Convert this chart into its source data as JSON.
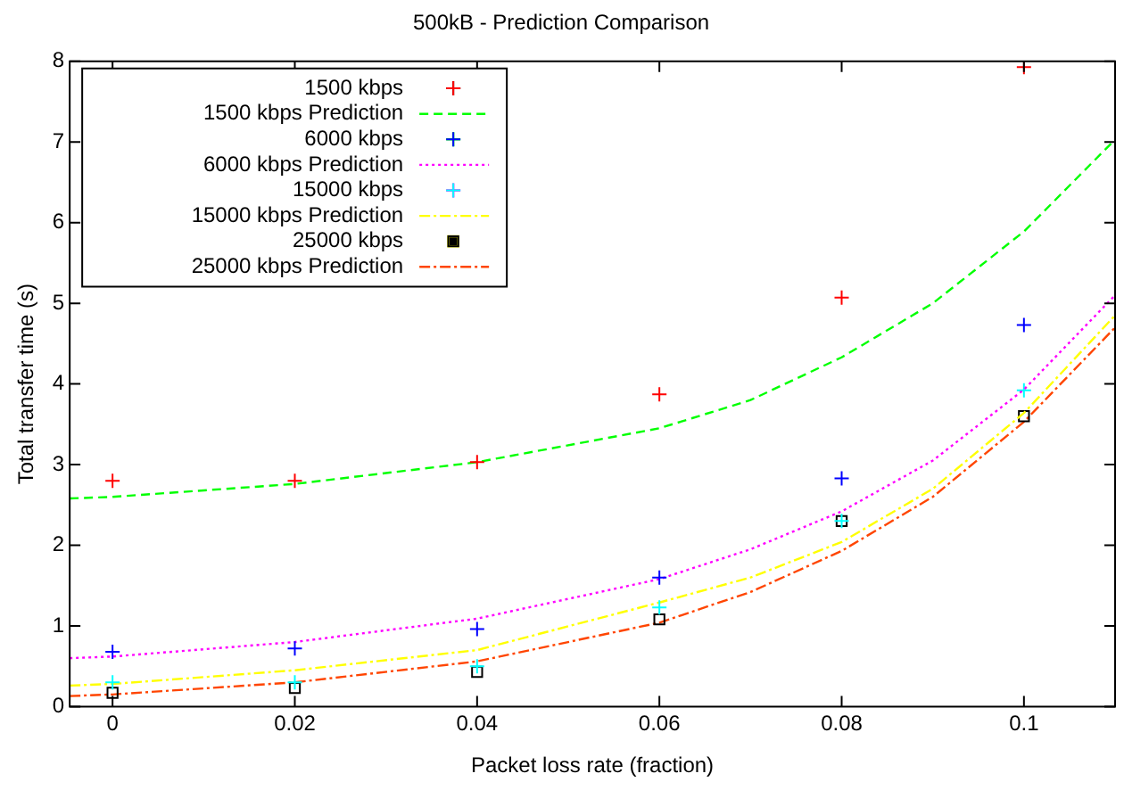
{
  "chart_data": {
    "type": "scatter",
    "title": "500kB - Prediction Comparison",
    "xlabel": "Packet loss rate (fraction)",
    "ylabel": "Total transfer time (s)",
    "xlim": [
      -0.0047,
      0.11
    ],
    "xticks": [
      0,
      0.02,
      0.04,
      0.06,
      0.08,
      0.1
    ],
    "ylim": [
      0,
      8
    ],
    "yticks": [
      0,
      1,
      2,
      3,
      4,
      5,
      6,
      7,
      8
    ],
    "grid": false,
    "legend": "top left",
    "x": [
      0,
      0.02,
      0.04,
      0.06,
      0.08,
      0.1
    ],
    "series": [
      {
        "name": "1500 kbps",
        "marker": "cross",
        "color": "#ff0000",
        "values": [
          2.8,
          2.8,
          3.03,
          3.87,
          5.07,
          7.93
        ]
      },
      {
        "name": "1500 kbps Prediction",
        "type": "line",
        "line_style": "dashed",
        "color": "#00ff00",
        "x": [
          -0.0047,
          0,
          0.02,
          0.04,
          0.06,
          0.07,
          0.08,
          0.09,
          0.1,
          0.11
        ],
        "values": [
          2.58,
          2.6,
          2.76,
          3.03,
          3.45,
          3.8,
          4.33,
          5.0,
          5.89,
          7.03
        ]
      },
      {
        "name": "6000 kbps",
        "marker": "cross",
        "color": "#0000ff",
        "values": [
          0.68,
          0.72,
          0.96,
          1.6,
          2.83,
          4.73
        ]
      },
      {
        "name": "6000 kbps Prediction",
        "type": "line",
        "line_style": "dotted",
        "color": "#ff00ff",
        "x": [
          -0.0047,
          0,
          0.02,
          0.04,
          0.06,
          0.07,
          0.08,
          0.09,
          0.1,
          0.11
        ],
        "values": [
          0.6,
          0.62,
          0.8,
          1.09,
          1.58,
          1.95,
          2.42,
          3.05,
          3.93,
          5.1
        ]
      },
      {
        "name": "15000 kbps",
        "marker": "cross",
        "color": "#00ffff",
        "values": [
          0.3,
          0.3,
          0.5,
          1.23,
          2.3,
          3.92
        ]
      },
      {
        "name": "15000 kbps Prediction",
        "type": "line",
        "line_style": "dashdot",
        "color": "#ffff00",
        "x": [
          -0.0047,
          0,
          0.02,
          0.04,
          0.06,
          0.07,
          0.08,
          0.09,
          0.1,
          0.11
        ],
        "values": [
          0.26,
          0.28,
          0.45,
          0.7,
          1.29,
          1.6,
          2.04,
          2.7,
          3.64,
          4.85
        ]
      },
      {
        "name": "25000 kbps",
        "marker": "square",
        "color": "#000000",
        "values": [
          0.17,
          0.23,
          0.43,
          1.08,
          2.3,
          3.6
        ]
      },
      {
        "name": "25000 kbps Prediction",
        "type": "line",
        "line_style": "dashdot",
        "color": "#ff4500",
        "x": [
          -0.0047,
          0,
          0.02,
          0.04,
          0.06,
          0.07,
          0.08,
          0.09,
          0.1,
          0.11
        ],
        "values": [
          0.13,
          0.15,
          0.3,
          0.56,
          1.04,
          1.42,
          1.93,
          2.6,
          3.53,
          4.7
        ]
      }
    ]
  }
}
